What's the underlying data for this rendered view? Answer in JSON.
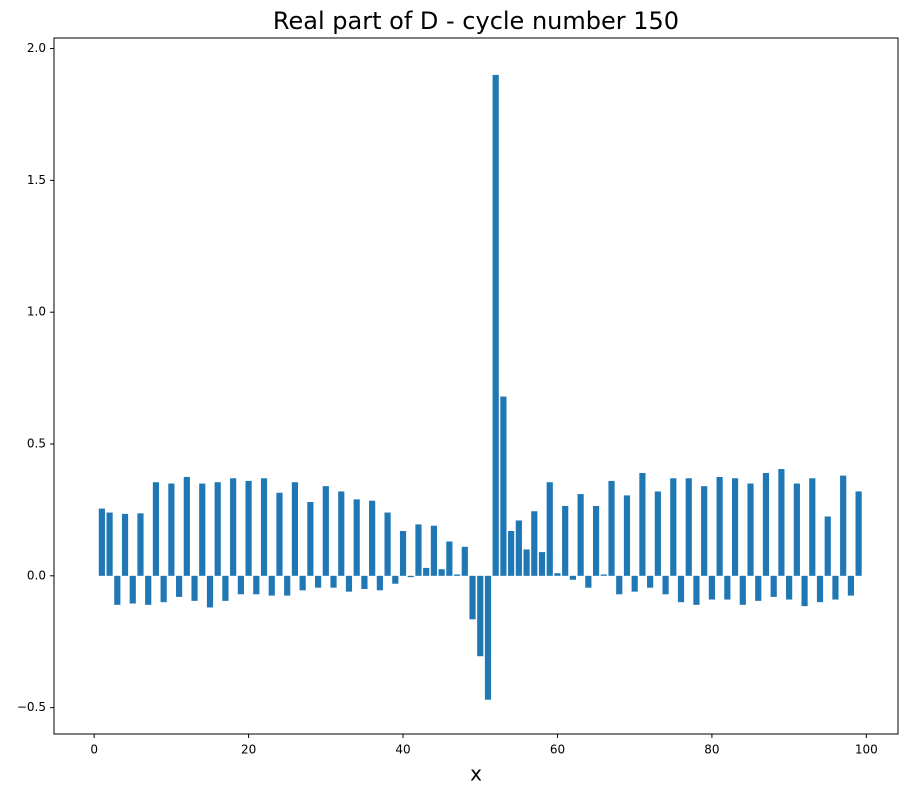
{
  "chart_data": {
    "type": "bar",
    "title": "Real part of D - cycle number 150",
    "xlabel": "x",
    "color": "#1f77b4",
    "bar_width": 0.8,
    "x": [
      1,
      2,
      3,
      4,
      5,
      6,
      7,
      8,
      9,
      10,
      11,
      12,
      13,
      14,
      15,
      16,
      17,
      18,
      19,
      20,
      21,
      22,
      23,
      24,
      25,
      26,
      27,
      28,
      29,
      30,
      31,
      32,
      33,
      34,
      35,
      36,
      37,
      38,
      39,
      40,
      41,
      42,
      43,
      44,
      45,
      46,
      47,
      48,
      49,
      50,
      51,
      52,
      53,
      54,
      55,
      56,
      57,
      58,
      59,
      60,
      61,
      62,
      63,
      64,
      65,
      66,
      67,
      68,
      69,
      70,
      71,
      72,
      73,
      74,
      75,
      76,
      77,
      78,
      79,
      80,
      81,
      82,
      83,
      84,
      85,
      86,
      87,
      88,
      89,
      90,
      91,
      92,
      93,
      94,
      95,
      96,
      97,
      98,
      99
    ],
    "values": [
      0.255,
      0.24,
      -0.11,
      0.235,
      -0.105,
      0.237,
      -0.11,
      0.355,
      -0.1,
      0.35,
      -0.08,
      0.375,
      -0.095,
      0.35,
      -0.12,
      0.355,
      -0.095,
      0.37,
      -0.07,
      0.36,
      -0.07,
      0.37,
      -0.075,
      0.315,
      -0.075,
      0.355,
      -0.055,
      0.28,
      -0.045,
      0.34,
      -0.045,
      0.32,
      -0.06,
      0.29,
      -0.05,
      0.285,
      -0.055,
      0.24,
      -0.03,
      0.17,
      -0.005,
      0.195,
      0.03,
      0.19,
      0.025,
      0.13,
      0.005,
      0.11,
      -0.165,
      -0.305,
      -0.47,
      1.9,
      0.68,
      0.17,
      0.21,
      0.1,
      0.245,
      0.09,
      0.355,
      0.01,
      0.265,
      -0.015,
      0.31,
      -0.045,
      0.265,
      0.005,
      0.36,
      -0.07,
      0.305,
      -0.06,
      0.39,
      -0.045,
      0.32,
      -0.07,
      0.37,
      -0.1,
      0.37,
      -0.11,
      0.34,
      -0.09,
      0.375,
      -0.09,
      0.37,
      -0.11,
      0.35,
      -0.095,
      0.39,
      -0.08,
      0.405,
      -0.09,
      0.35,
      -0.115,
      0.37,
      -0.1,
      0.225,
      -0.09,
      0.38,
      -0.075,
      0.32
    ],
    "xlim": [
      -5.2,
      104.1
    ],
    "xticks": [
      0,
      20,
      40,
      60,
      80,
      100
    ],
    "ylim": [
      -0.6,
      2.04
    ],
    "yticks": [
      {
        "value": -0.5,
        "label": "−0.5"
      },
      {
        "value": 0,
        "label": "0.0"
      },
      0.5,
      {
        "value": 1,
        "label": "1.0"
      },
      1.5,
      {
        "value": 2,
        "label": "2.0"
      }
    ]
  }
}
